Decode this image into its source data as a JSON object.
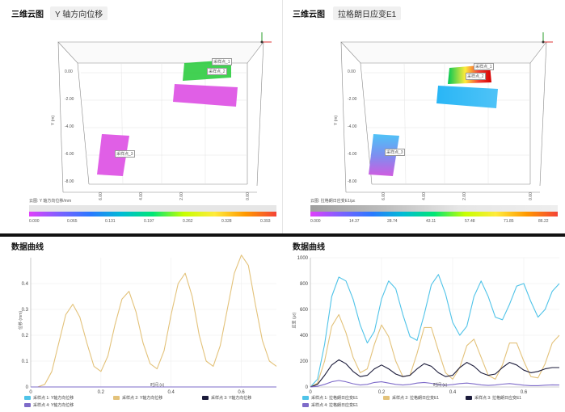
{
  "left_top": {
    "title": "三维云图",
    "subtitle": "Y 轴方向位移",
    "axis_label": "Y (m)",
    "yticks": [
      "0.00",
      "-2.00",
      "-4.00",
      "-6.00",
      "-8.00"
    ],
    "xticks": [
      "6.00",
      "4.00",
      "2.00",
      "0.00"
    ],
    "sensors": [
      "采样点_1",
      "采样点_2",
      "采样点_3"
    ],
    "colorbar_title": "云图: Y 轴方向位移/mm",
    "colorbar_ticks": [
      "0.000",
      "0.065",
      "0.131",
      "0.197",
      "0.262",
      "0.328",
      "0.393"
    ]
  },
  "right_top": {
    "title": "三维云图",
    "subtitle": "拉格朗日应变E1",
    "axis_label": "Y (m)",
    "yticks": [
      "0.00",
      "-2.00",
      "-4.00",
      "-6.00",
      "-8.00"
    ],
    "xticks": [
      "6.00",
      "4.00",
      "2.00",
      "0.00"
    ],
    "sensors": [
      "采样点_1",
      "采样点_2",
      "采样点_3"
    ],
    "colorbar_title": "云图: 拉格朗日应变E1/με",
    "colorbar_ticks": [
      "0.000",
      "14.37",
      "28.74",
      "43.11",
      "57.48",
      "71.85",
      "86.22"
    ]
  },
  "left_bottom": {
    "title": "数据曲线",
    "ylabel": "位移 (mm)",
    "xlabel": "时间 (s)",
    "legend": [
      "采样点 1: Y轴方向位移",
      "采样点 2: Y轴方向位移",
      "采样点 3: Y轴方向位移",
      "采样点 4: Y轴方向位移"
    ]
  },
  "right_bottom": {
    "title": "数据曲线",
    "ylabel": "应变 (με)",
    "xlabel": "时间 (s)",
    "legend": [
      "采样点 1: 拉格朗日应变E1",
      "采样点 2: 拉格朗日应变E1",
      "采样点 3: 拉格朗日应变E1",
      "采样点 4: 拉格朗日应变E1"
    ]
  },
  "chart_data": [
    {
      "type": "line",
      "ylabel": "位移 (mm)",
      "xlabel": "时间 (s)",
      "xlim": [
        0,
        0.7
      ],
      "ylim": [
        0,
        0.5
      ],
      "yticks": [
        "0",
        "0.1",
        "0.2",
        "0.3",
        "0.4"
      ],
      "xticks": [
        "0",
        "0.2",
        "0.4",
        "0.6"
      ],
      "grid": true,
      "legend_position": "bottom",
      "x": [
        0,
        0.02,
        0.04,
        0.06,
        0.08,
        0.1,
        0.12,
        0.14,
        0.16,
        0.18,
        0.2,
        0.22,
        0.24,
        0.26,
        0.28,
        0.3,
        0.32,
        0.34,
        0.36,
        0.38,
        0.4,
        0.42,
        0.44,
        0.46,
        0.48,
        0.5,
        0.52,
        0.54,
        0.56,
        0.58,
        0.6,
        0.62,
        0.64,
        0.66,
        0.68,
        0.7
      ],
      "series": [
        {
          "name": "采样点 1: Y轴方向位移",
          "color": "#4fc3e8",
          "values": [
            0,
            0,
            0,
            0,
            0,
            0,
            0,
            0,
            0,
            0,
            0,
            0,
            0,
            0,
            0,
            0,
            0,
            0,
            0,
            0,
            0,
            0,
            0,
            0,
            0,
            0,
            0,
            0,
            0,
            0,
            0,
            0,
            0,
            0,
            0,
            0
          ]
        },
        {
          "name": "采样点 2: Y轴方向位移",
          "color": "#e3c27a",
          "values": [
            0,
            0,
            0.01,
            0.06,
            0.17,
            0.28,
            0.32,
            0.27,
            0.17,
            0.08,
            0.06,
            0.12,
            0.24,
            0.34,
            0.37,
            0.29,
            0.17,
            0.09,
            0.07,
            0.14,
            0.28,
            0.4,
            0.44,
            0.35,
            0.2,
            0.1,
            0.08,
            0.16,
            0.3,
            0.44,
            0.51,
            0.47,
            0.32,
            0.18,
            0.1,
            0.08
          ]
        },
        {
          "name": "采样点 3: Y轴方向位移",
          "color": "#1b1b3a",
          "values": [
            0,
            0,
            0,
            0,
            0,
            0,
            0,
            0,
            0,
            0,
            0,
            0,
            0,
            0,
            0,
            0,
            0,
            0,
            0,
            0,
            0,
            0,
            0,
            0,
            0,
            0,
            0,
            0,
            0,
            0,
            0,
            0,
            0,
            0,
            0,
            0
          ]
        },
        {
          "name": "采样点 4: Y轴方向位移",
          "color": "#7e6bc9",
          "values": [
            0,
            0,
            0,
            0,
            0,
            0,
            0,
            0,
            0,
            0,
            0,
            0,
            0,
            0,
            0,
            0,
            0,
            0,
            0,
            0,
            0,
            0,
            0,
            0,
            0,
            0,
            0,
            0,
            0,
            0,
            0,
            0,
            0,
            0,
            0,
            0
          ]
        }
      ]
    },
    {
      "type": "line",
      "ylabel": "应变 (με)",
      "xlabel": "时间 (s)",
      "xlim": [
        0,
        0.7
      ],
      "ylim": [
        0,
        1000
      ],
      "yticks": [
        "0",
        "200",
        "400",
        "600",
        "800",
        "1000"
      ],
      "xticks": [
        "0",
        "0.2",
        "0.4",
        "0.6"
      ],
      "grid": true,
      "legend_position": "bottom",
      "x": [
        0,
        0.02,
        0.04,
        0.06,
        0.08,
        0.1,
        0.12,
        0.14,
        0.16,
        0.18,
        0.2,
        0.22,
        0.24,
        0.26,
        0.28,
        0.3,
        0.32,
        0.34,
        0.36,
        0.38,
        0.4,
        0.42,
        0.44,
        0.46,
        0.48,
        0.5,
        0.52,
        0.54,
        0.56,
        0.58,
        0.6,
        0.62,
        0.64,
        0.66,
        0.68,
        0.7
      ],
      "series": [
        {
          "name": "采样点 1: 拉格朗日应变E1",
          "color": "#4fc3e8",
          "values": [
            0,
            60,
            330,
            700,
            850,
            820,
            680,
            480,
            340,
            430,
            680,
            820,
            760,
            560,
            390,
            360,
            560,
            790,
            870,
            720,
            500,
            400,
            470,
            700,
            820,
            700,
            540,
            520,
            640,
            780,
            800,
            660,
            540,
            600,
            740,
            800
          ]
        },
        {
          "name": "采样点 2: 拉格朗日应变E1",
          "color": "#e3c27a",
          "values": [
            0,
            30,
            200,
            470,
            560,
            420,
            230,
            110,
            140,
            330,
            480,
            390,
            200,
            80,
            90,
            260,
            460,
            460,
            280,
            110,
            60,
            150,
            320,
            370,
            230,
            90,
            60,
            170,
            340,
            340,
            200,
            80,
            70,
            180,
            340,
            400
          ]
        },
        {
          "name": "采样点 3: 拉格朗日应变E1",
          "color": "#1b1b3a",
          "values": [
            0,
            20,
            90,
            170,
            210,
            180,
            120,
            80,
            90,
            140,
            170,
            140,
            100,
            80,
            90,
            140,
            180,
            160,
            110,
            80,
            90,
            150,
            190,
            160,
            110,
            90,
            100,
            150,
            190,
            170,
            130,
            110,
            120,
            140,
            150,
            150
          ]
        },
        {
          "name": "采样点 4: 拉格朗日应变E1",
          "color": "#7e6bc9",
          "values": [
            0,
            5,
            20,
            40,
            50,
            40,
            25,
            15,
            20,
            35,
            40,
            30,
            20,
            15,
            20,
            30,
            35,
            28,
            18,
            14,
            18,
            26,
            30,
            24,
            16,
            12,
            15,
            22,
            26,
            20,
            14,
            10,
            10,
            14,
            16,
            15
          ]
        }
      ]
    }
  ]
}
